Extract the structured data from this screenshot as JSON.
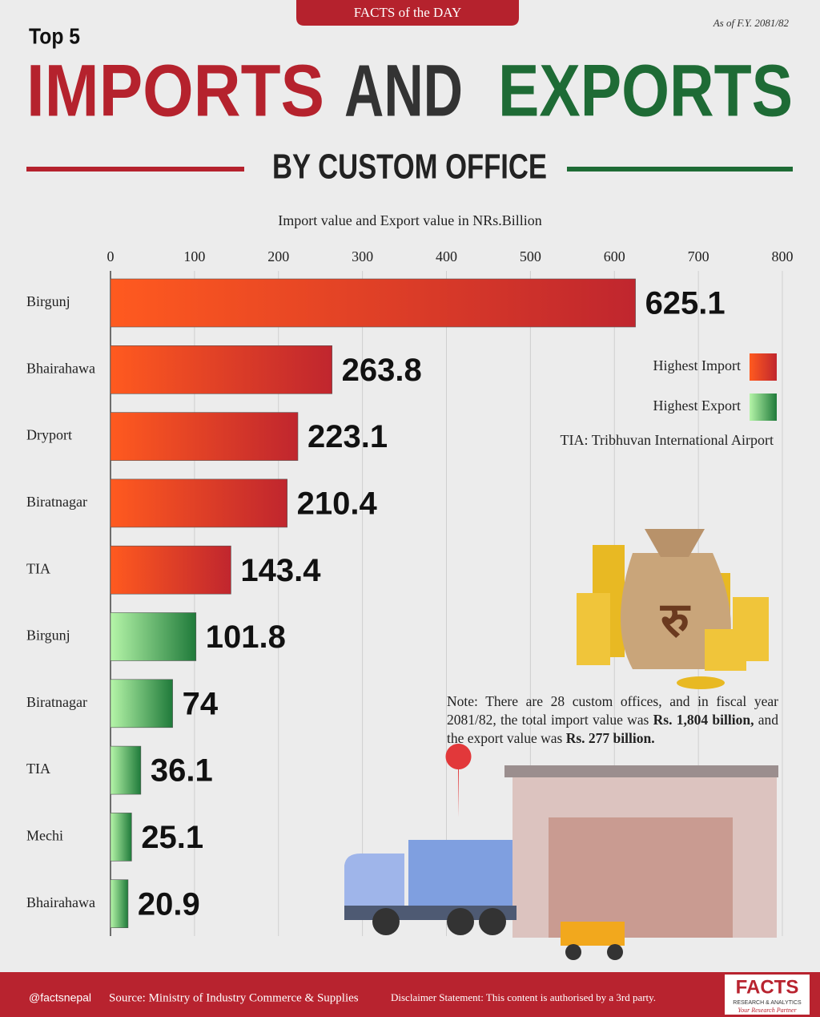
{
  "banner": "FACTS of the DAY",
  "as_of": "As of F.Y. 2081/82",
  "kicker": "Top 5",
  "title": {
    "imports": "IMPORTS",
    "and": "AND",
    "exports": "EXPORTS"
  },
  "subtitle": "BY CUSTOM OFFICE",
  "chart_data": {
    "type": "bar",
    "orientation": "horizontal",
    "axis_label": "Import value and Export value in NRs.Billion",
    "categories": [
      "Birgunj",
      "Bhairahawa",
      "Dryport",
      "Biratnagar",
      "TIA",
      "Birgunj",
      "Biratnagar",
      "TIA",
      "Mechi",
      "Bhairahawa"
    ],
    "series": [
      {
        "name": "Highest Import",
        "color": "#c0262e",
        "values": [
          625.1,
          263.8,
          223.1,
          210.4,
          143.4,
          null,
          null,
          null,
          null,
          null
        ]
      },
      {
        "name": "Highest Export",
        "color": "#1f7a3a",
        "values": [
          null,
          null,
          null,
          null,
          null,
          101.8,
          74,
          36.1,
          25.1,
          20.9
        ]
      }
    ],
    "xlim": [
      0,
      800
    ],
    "xticks": [
      0,
      100,
      200,
      300,
      400,
      500,
      600,
      700,
      800
    ],
    "grid": true,
    "legend": "upper right",
    "legend_note": "TIA: Tribhuvan International Airport"
  },
  "note": {
    "part1": "Note: There are 28 custom offices, and in fiscal year 2081/82, the total import value was ",
    "bold1": "Rs. 1,804 billion,",
    "part2": " and the export value was ",
    "bold2": "Rs. 277 billion."
  },
  "footer": {
    "handle": "@factsnepal",
    "source": "Source: Ministry of Industry Commerce & Supplies",
    "disclaimer": "Disclaimer Statement: This content is authorised by a 3rd party."
  },
  "logo": {
    "name": "FACTS",
    "tagline": "RESEARCH & ANALYTICS",
    "slogan": "Your Research Partner"
  }
}
